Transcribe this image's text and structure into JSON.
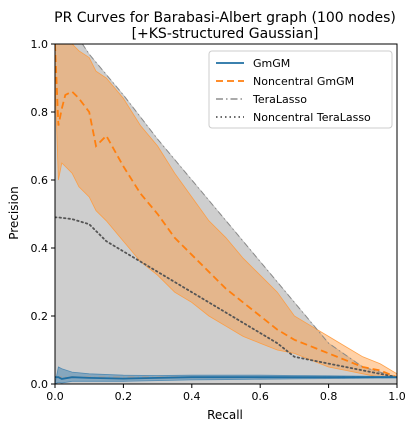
{
  "chart_data": {
    "type": "line",
    "title": "PR Curves for Barabasi-Albert graph (100 nodes)\n[+KS-structured Gaussian]",
    "xlabel": "Recall",
    "ylabel": "Precision",
    "xlim": [
      0.0,
      1.0
    ],
    "ylim": [
      0.0,
      1.0
    ],
    "xticks": [
      0.0,
      0.2,
      0.4,
      0.6,
      0.8,
      1.0
    ],
    "yticks": [
      0.0,
      0.2,
      0.4,
      0.6,
      0.8,
      1.0
    ],
    "grid": false,
    "legend_position": "top-right",
    "series": [
      {
        "name": "GmGM",
        "color": "#1f6fa3",
        "band_color": "#4a86b0",
        "style": "solid",
        "x": [
          0.0,
          0.01,
          0.02,
          0.05,
          0.1,
          0.2,
          0.3,
          0.4,
          0.5,
          0.6,
          0.7,
          0.8,
          0.9,
          1.0
        ],
        "y": [
          0.02,
          0.02,
          0.015,
          0.02,
          0.018,
          0.016,
          0.018,
          0.02,
          0.02,
          0.02,
          0.02,
          0.02,
          0.02,
          0.02
        ],
        "lower": [
          0.0,
          0.005,
          0.003,
          0.008,
          0.008,
          0.008,
          0.01,
          0.012,
          0.013,
          0.014,
          0.015,
          0.016,
          0.017,
          0.018
        ],
        "upper": [
          0.0,
          0.05,
          0.045,
          0.035,
          0.03,
          0.026,
          0.025,
          0.026,
          0.026,
          0.026,
          0.025,
          0.024,
          0.023,
          0.022
        ]
      },
      {
        "name": "Noncentral GmGM",
        "color": "#ff7f0e",
        "band_color": "#ff9a3c",
        "style": "dashed",
        "x": [
          0.0,
          0.01,
          0.02,
          0.03,
          0.05,
          0.07,
          0.1,
          0.12,
          0.15,
          0.2,
          0.25,
          0.3,
          0.35,
          0.4,
          0.45,
          0.5,
          0.55,
          0.6,
          0.65,
          0.7,
          0.75,
          0.8,
          0.85,
          0.9,
          0.95,
          1.0
        ],
        "y": [
          1.0,
          0.76,
          0.81,
          0.85,
          0.86,
          0.84,
          0.8,
          0.7,
          0.73,
          0.64,
          0.56,
          0.5,
          0.43,
          0.38,
          0.33,
          0.28,
          0.24,
          0.2,
          0.16,
          0.13,
          0.11,
          0.09,
          0.07,
          0.05,
          0.04,
          0.02
        ],
        "lower": [
          0.9,
          0.6,
          0.65,
          0.64,
          0.62,
          0.58,
          0.55,
          0.51,
          0.48,
          0.42,
          0.36,
          0.32,
          0.27,
          0.24,
          0.2,
          0.17,
          0.14,
          0.12,
          0.1,
          0.09,
          0.07,
          0.05,
          0.04,
          0.03,
          0.02,
          0.02
        ],
        "upper": [
          1.0,
          1.0,
          1.0,
          1.0,
          1.0,
          0.98,
          0.96,
          0.92,
          0.9,
          0.84,
          0.76,
          0.7,
          0.62,
          0.55,
          0.48,
          0.43,
          0.37,
          0.32,
          0.27,
          0.2,
          0.17,
          0.14,
          0.11,
          0.08,
          0.06,
          0.03
        ]
      },
      {
        "name": "TeraLasso",
        "color": "#9e9e9e",
        "band_color": "#bdbdbd",
        "style": "dashdot",
        "x": [
          0.0,
          0.01,
          0.05,
          0.08,
          0.1,
          0.2,
          0.3,
          0.4,
          0.5,
          0.6,
          0.7,
          0.8,
          0.9,
          1.0
        ],
        "y": [
          0.02,
          0.02,
          0.02,
          0.02,
          0.02,
          0.02,
          0.02,
          0.02,
          0.02,
          0.02,
          0.02,
          0.02,
          0.02,
          0.02
        ],
        "lower": [
          0.0,
          0.0,
          0.0,
          0.0,
          0.0,
          0.0,
          0.0,
          0.0,
          0.0,
          0.0,
          0.0,
          0.0,
          0.0,
          0.0
        ],
        "upper": [
          1.0,
          1.0,
          1.0,
          1.0,
          0.97,
          0.85,
          0.72,
          0.6,
          0.48,
          0.36,
          0.24,
          0.12,
          0.05,
          0.02
        ]
      },
      {
        "name": "Noncentral TeraLasso",
        "color": "#555555",
        "style": "dotted",
        "x": [
          0.0,
          0.01,
          0.05,
          0.1,
          0.15,
          0.2,
          0.3,
          0.4,
          0.5,
          0.6,
          0.65,
          0.7,
          0.8,
          0.9,
          1.0
        ],
        "y": [
          0.49,
          0.49,
          0.485,
          0.47,
          0.42,
          0.39,
          0.33,
          0.27,
          0.21,
          0.15,
          0.12,
          0.08,
          0.06,
          0.04,
          0.02
        ]
      }
    ]
  }
}
